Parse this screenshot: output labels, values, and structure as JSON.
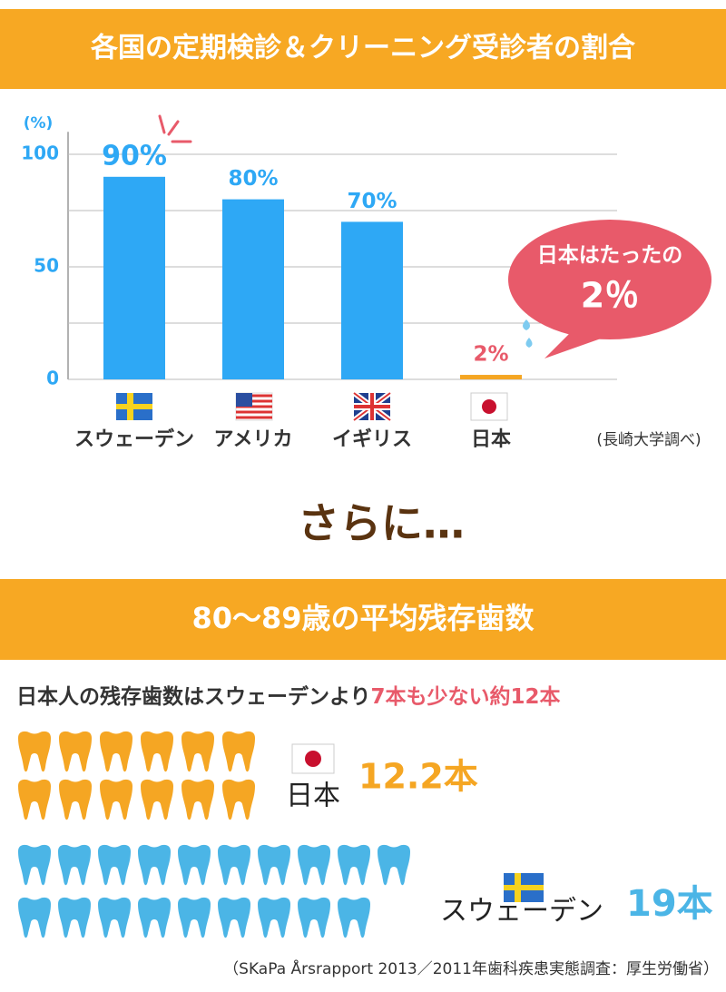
{
  "header": {
    "title": "各国の定期検診＆クリーニング受診者の割合"
  },
  "chart_data": {
    "type": "bar",
    "y_unit": "(%)",
    "categories": [
      "スウェーデン",
      "アメリカ",
      "イギリス",
      "日本"
    ],
    "values": [
      90,
      80,
      70,
      2
    ],
    "value_labels": [
      "90%",
      "80%",
      "70%",
      "2%"
    ],
    "colors": [
      "#2ea8f5",
      "#2ea8f5",
      "#2ea8f5",
      "#f5a623"
    ],
    "label_colors": [
      "#2ea8f5",
      "#2ea8f5",
      "#2ea8f5",
      "#e85a6a"
    ],
    "ylim": [
      0,
      110
    ],
    "yticks": [
      0,
      50,
      100
    ],
    "minor_yticks": [
      25,
      75
    ],
    "grid": true,
    "annotation": {
      "line1": "日本はたったの",
      "line2": "2％"
    },
    "source": "(長崎大学調べ)"
  },
  "transition": "さらに…",
  "teeth": {
    "title": "80〜89歳の平均残存歯数",
    "lead": "日本人の残存歯数はスウェーデンより",
    "highlight": "7本も少ない約12本",
    "groups": [
      {
        "name": "日本",
        "value": 12.2,
        "value_label": "12.2本",
        "color": "#f5a623"
      },
      {
        "name": "スウェーデン",
        "value": 19,
        "value_label": "19本",
        "color": "#4bb5e6"
      }
    ],
    "source": "（SKaPa Årsrapport 2013／2011年歯科疾患実態調査：厚生労働省）"
  }
}
